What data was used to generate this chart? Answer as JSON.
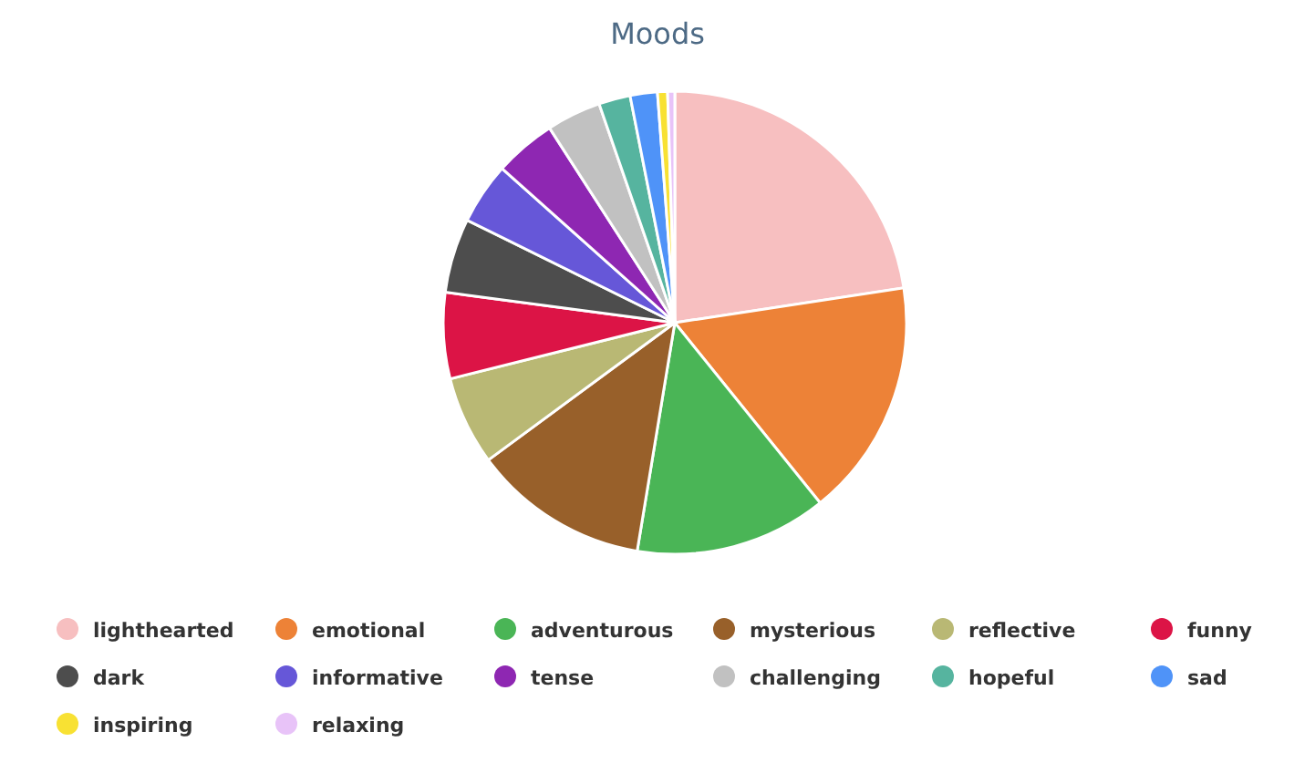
{
  "chart_data": {
    "type": "pie",
    "title": "Moods",
    "categories": [
      "lighthearted",
      "emotional",
      "adventurous",
      "mysterious",
      "reflective",
      "funny",
      "dark",
      "informative",
      "tense",
      "challenging",
      "hopeful",
      "sad",
      "inspiring",
      "relaxing"
    ],
    "values": [
      22.6,
      16.6,
      13.4,
      12.3,
      6.2,
      6.0,
      5.2,
      4.3,
      4.3,
      3.8,
      2.2,
      1.9,
      0.7,
      0.5
    ],
    "colors": [
      "#f7bfc0",
      "#ed8237",
      "#4ab556",
      "#98602a",
      "#b9b874",
      "#dc1446",
      "#4d4d4d",
      "#6657d8",
      "#8e27b2",
      "#c1c1c1",
      "#56b49f",
      "#4f93f8",
      "#f8e133",
      "#e8c3f8"
    ],
    "legend": "bottom"
  }
}
